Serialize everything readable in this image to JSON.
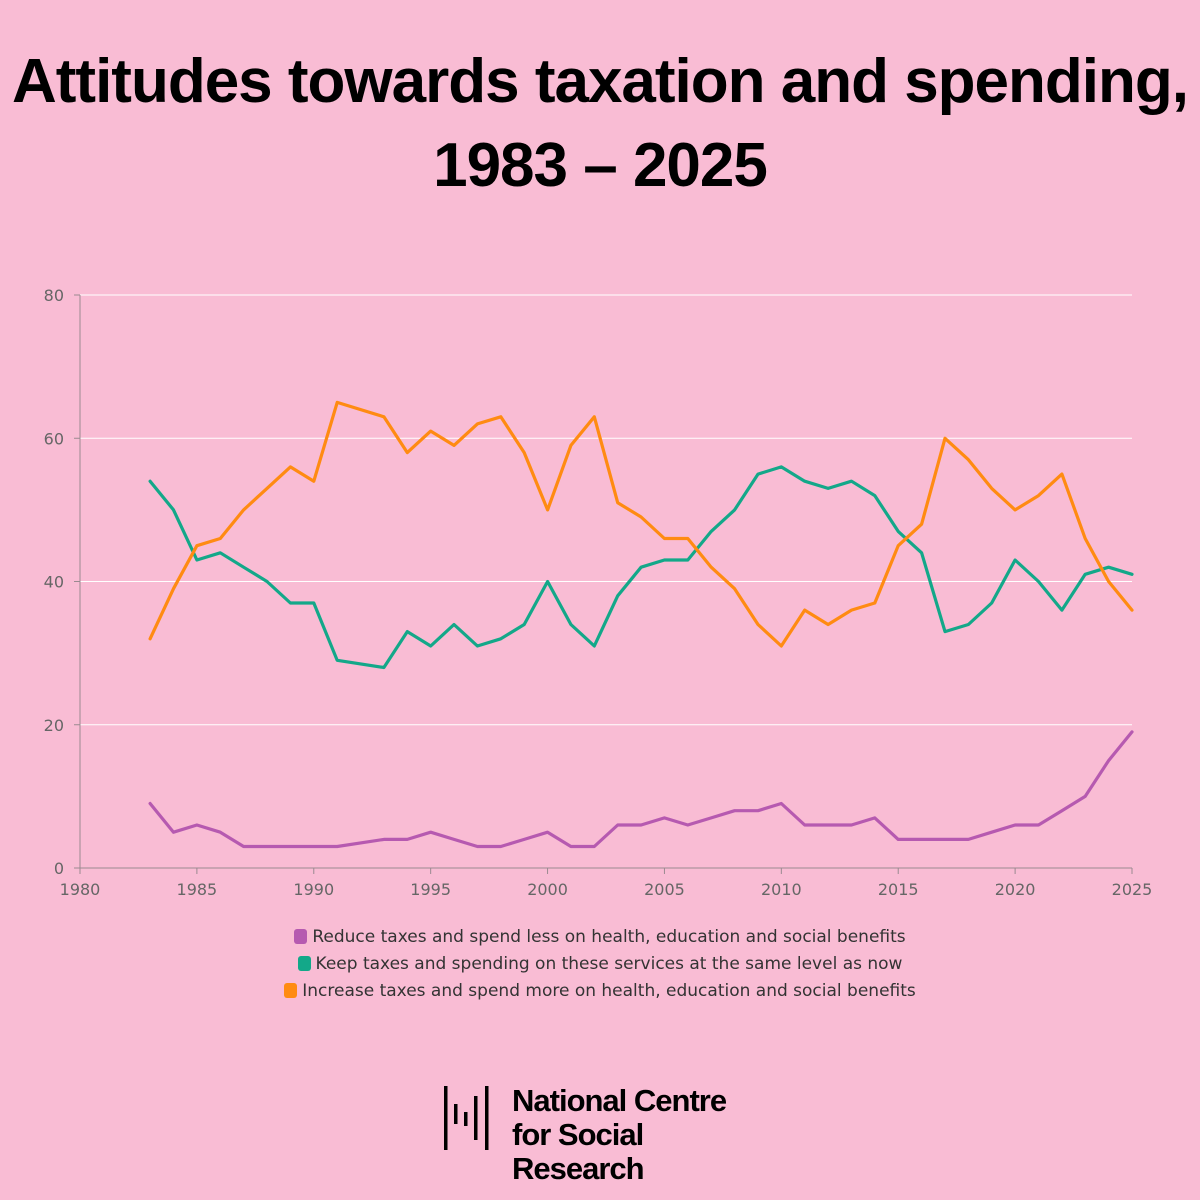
{
  "title": {
    "line1": "Attitudes towards taxation and spending,",
    "line2": "1983 – 2025"
  },
  "logo": {
    "line1": "National Centre",
    "line2": "for Social Research"
  },
  "colors": {
    "background": "#f9bcd4",
    "reduce": "#b65ab0",
    "keep": "#13a889",
    "increase": "#ff8b12"
  },
  "chart_data": {
    "type": "line",
    "title": "",
    "xlabel": "",
    "ylabel": "",
    "xlim": [
      1980,
      2025
    ],
    "ylim": [
      0,
      80
    ],
    "x_ticks": [
      1980,
      1985,
      1990,
      1995,
      2000,
      2005,
      2010,
      2015,
      2020,
      2025
    ],
    "y_ticks": [
      0,
      20,
      40,
      60,
      80
    ],
    "grid": true,
    "legend_position": "bottom-center",
    "x": [
      1983,
      1984,
      1985,
      1986,
      1987,
      1988,
      1989,
      1990,
      1991,
      1993,
      1994,
      1995,
      1996,
      1997,
      1998,
      1999,
      2000,
      2001,
      2002,
      2003,
      2004,
      2005,
      2006,
      2007,
      2008,
      2009,
      2010,
      2011,
      2012,
      2013,
      2014,
      2015,
      2016,
      2017,
      2018,
      2019,
      2020,
      2021,
      2022,
      2023,
      2024,
      2025
    ],
    "series": [
      {
        "name": "Reduce taxes and spend less on health, education and social benefits",
        "color": "#b65ab0",
        "values": [
          9,
          5,
          6,
          5,
          3,
          3,
          3,
          3,
          3,
          4,
          4,
          5,
          4,
          3,
          3,
          4,
          5,
          3,
          3,
          6,
          6,
          7,
          6,
          7,
          8,
          8,
          9,
          6,
          6,
          6,
          7,
          4,
          4,
          4,
          4,
          5,
          6,
          6,
          8,
          10,
          15,
          19
        ]
      },
      {
        "name": "Keep taxes and spending on these services at the same level as now",
        "color": "#13a889",
        "values": [
          54,
          50,
          43,
          44,
          42,
          40,
          37,
          37,
          29,
          28,
          33,
          31,
          34,
          31,
          32,
          34,
          40,
          34,
          31,
          38,
          42,
          43,
          43,
          47,
          50,
          55,
          56,
          54,
          53,
          54,
          52,
          47,
          44,
          33,
          34,
          37,
          43,
          40,
          36,
          41,
          42,
          41
        ]
      },
      {
        "name": "Increase taxes and spend more on health, education and social benefits",
        "color": "#ff8b12",
        "values": [
          32,
          39,
          45,
          46,
          50,
          53,
          56,
          54,
          65,
          63,
          58,
          61,
          59,
          62,
          63,
          58,
          50,
          59,
          63,
          51,
          49,
          46,
          46,
          42,
          39,
          34,
          31,
          36,
          34,
          36,
          37,
          45,
          48,
          60,
          57,
          53,
          50,
          52,
          55,
          46,
          40,
          36
        ]
      }
    ]
  }
}
